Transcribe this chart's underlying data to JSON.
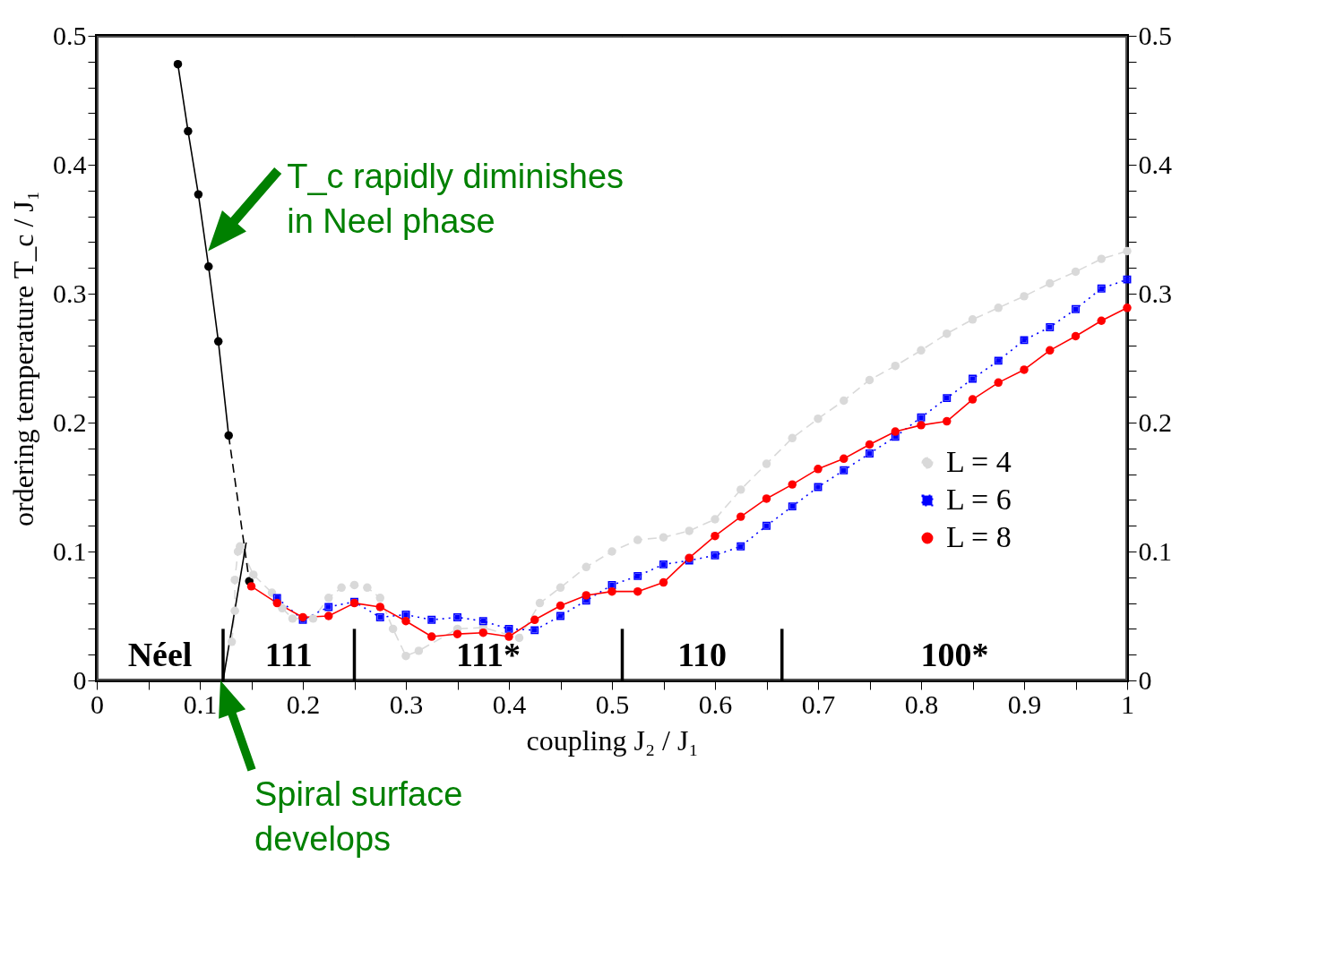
{
  "chart_data": {
    "type": "line",
    "xlabel": "coupling  J₂ / J₁",
    "ylabel": "ordering temperature  T_c / J₁",
    "xlim": [
      0,
      1
    ],
    "ylim": [
      0,
      0.5
    ],
    "y2lim": [
      0,
      0.5
    ],
    "xticks": [
      0,
      {
        "value": 0.05,
        "label": null
      },
      0.1,
      {
        "value": 0.15,
        "label": null
      },
      0.2,
      {
        "value": 0.25,
        "label": null
      },
      0.3,
      {
        "value": 0.35,
        "label": null
      },
      0.4,
      {
        "value": 0.45,
        "label": null
      },
      0.5,
      {
        "value": 0.55,
        "label": null
      },
      0.6,
      {
        "value": 0.65,
        "label": null
      },
      0.7,
      {
        "value": 0.75,
        "label": null
      },
      0.8,
      {
        "value": 0.85,
        "label": null
      },
      0.9,
      {
        "value": 0.95,
        "label": null
      },
      1
    ],
    "yticks": [
      0,
      {
        "value": 0.02,
        "label": null
      },
      {
        "value": 0.04,
        "label": null
      },
      {
        "value": 0.06,
        "label": null
      },
      {
        "value": 0.08,
        "label": null
      },
      0.1,
      {
        "value": 0.12,
        "label": null
      },
      {
        "value": 0.14,
        "label": null
      },
      {
        "value": 0.16,
        "label": null
      },
      {
        "value": 0.18,
        "label": null
      },
      0.2,
      {
        "value": 0.22,
        "label": null
      },
      {
        "value": 0.24,
        "label": null
      },
      {
        "value": 0.26,
        "label": null
      },
      {
        "value": 0.28,
        "label": null
      },
      0.3,
      {
        "value": 0.32,
        "label": null
      },
      {
        "value": 0.34,
        "label": null
      },
      {
        "value": 0.36,
        "label": null
      },
      {
        "value": 0.38,
        "label": null
      },
      0.4,
      {
        "value": 0.42,
        "label": null
      },
      {
        "value": 0.44,
        "label": null
      },
      {
        "value": 0.46,
        "label": null
      },
      {
        "value": 0.48,
        "label": null
      },
      0.5
    ],
    "y2ticks": [
      0,
      {
        "value": 0.02,
        "label": null
      },
      {
        "value": 0.04,
        "label": null
      },
      {
        "value": 0.06,
        "label": null
      },
      {
        "value": 0.08,
        "label": null
      },
      0.1,
      {
        "value": 0.12,
        "label": null
      },
      {
        "value": 0.14,
        "label": null
      },
      {
        "value": 0.16,
        "label": null
      },
      {
        "value": 0.18,
        "label": null
      },
      0.2,
      {
        "value": 0.22,
        "label": null
      },
      {
        "value": 0.24,
        "label": null
      },
      {
        "value": 0.26,
        "label": null
      },
      {
        "value": 0.28,
        "label": null
      },
      0.3,
      {
        "value": 0.32,
        "label": null
      },
      {
        "value": 0.34,
        "label": null
      },
      {
        "value": 0.36,
        "label": null
      },
      {
        "value": 0.38,
        "label": null
      },
      0.4,
      {
        "value": 0.42,
        "label": null
      },
      {
        "value": 0.44,
        "label": null
      },
      {
        "value": 0.46,
        "label": null
      },
      {
        "value": 0.48,
        "label": null
      },
      0.5
    ],
    "grid": false,
    "legend": "bottom right",
    "series": [
      {
        "name": "L =  4",
        "color": "#d9d9d9",
        "line_style": "dashed",
        "marker": "circle",
        "x": [
          0.131,
          0.134,
          0.134,
          0.137,
          0.139,
          0.152,
          0.17,
          0.18,
          0.19,
          0.21,
          0.225,
          0.2375,
          0.25,
          0.2625,
          0.275,
          0.2875,
          0.3,
          0.3125,
          0.35,
          0.375,
          0.41,
          0.43,
          0.45,
          0.475,
          0.5,
          0.525,
          0.55,
          0.575,
          0.6,
          0.625,
          0.65,
          0.675,
          0.7,
          0.725,
          0.75,
          0.775,
          0.8,
          0.825,
          0.85,
          0.875,
          0.9,
          0.925,
          0.95,
          0.975,
          1.0
        ],
        "values": [
          0.03,
          0.054,
          0.078,
          0.1,
          0.104,
          0.082,
          0.068,
          0.056,
          0.048,
          0.048,
          0.064,
          0.072,
          0.074,
          0.072,
          0.064,
          0.04,
          0.019,
          0.023,
          0.04,
          0.041,
          0.033,
          0.06,
          0.072,
          0.088,
          0.1,
          0.109,
          0.111,
          0.116,
          0.125,
          0.148,
          0.168,
          0.188,
          0.203,
          0.217,
          0.233,
          0.244,
          0.256,
          0.269,
          0.28,
          0.289,
          0.298,
          0.308,
          0.317,
          0.327,
          0.333
        ]
      },
      {
        "name": "L =  6",
        "color": "#0000ff",
        "line_style": "dotted",
        "marker": "square",
        "x": [
          0.175,
          0.2,
          0.225,
          0.25,
          0.275,
          0.3,
          0.325,
          0.35,
          0.375,
          0.4,
          0.425,
          0.45,
          0.475,
          0.5,
          0.525,
          0.55,
          0.575,
          0.6,
          0.625,
          0.65,
          0.675,
          0.7,
          0.725,
          0.75,
          0.775,
          0.8,
          0.825,
          0.85,
          0.875,
          0.9,
          0.925,
          0.95,
          0.975,
          1.0
        ],
        "values": [
          0.064,
          0.047,
          0.057,
          0.061,
          0.049,
          0.051,
          0.047,
          0.049,
          0.046,
          0.04,
          0.039,
          0.05,
          0.062,
          0.074,
          0.081,
          0.09,
          0.093,
          0.097,
          0.104,
          0.12,
          0.135,
          0.15,
          0.163,
          0.176,
          0.189,
          0.204,
          0.219,
          0.234,
          0.248,
          0.264,
          0.274,
          0.288,
          0.304,
          0.311
        ]
      },
      {
        "name": "L =  8",
        "color": "#ff0000",
        "line_style": "solid",
        "marker": "circle",
        "x": [
          0.15,
          0.175,
          0.2,
          0.225,
          0.25,
          0.275,
          0.3,
          0.325,
          0.35,
          0.375,
          0.4,
          0.425,
          0.45,
          0.475,
          0.5,
          0.525,
          0.55,
          0.575,
          0.6,
          0.625,
          0.65,
          0.675,
          0.7,
          0.725,
          0.75,
          0.775,
          0.8,
          0.825,
          0.85,
          0.875,
          0.9,
          0.925,
          0.95,
          0.975,
          1.0
        ],
        "values": [
          0.073,
          0.06,
          0.049,
          0.05,
          0.06,
          0.057,
          0.046,
          0.034,
          0.036,
          0.037,
          0.034,
          0.047,
          0.058,
          0.066,
          0.069,
          0.069,
          0.076,
          0.095,
          0.112,
          0.127,
          0.141,
          0.152,
          0.164,
          0.172,
          0.183,
          0.193,
          0.198,
          0.201,
          0.218,
          0.231,
          0.241,
          0.256,
          0.267,
          0.279,
          0.289
        ]
      },
      {
        "color": "#000000",
        "line_style": "solid",
        "marker": "circle",
        "x": [
          0.0787,
          0.0886,
          0.0986,
          0.1085,
          0.118,
          0.128
        ],
        "values": [
          0.478,
          0.426,
          0.377,
          0.321,
          0.263,
          0.19
        ]
      },
      {
        "color": "#000000",
        "line_style": "dashed",
        "marker": "none",
        "x": [
          0.128,
          0.148
        ],
        "values": [
          0.19,
          0.077
        ]
      },
      {
        "type": "scatter",
        "color": "#000000",
        "marker": "circle",
        "x": [
          0.148
        ],
        "values": [
          0.077
        ]
      },
      {
        "color": "#000000",
        "line_style": "solid",
        "marker": "none",
        "x": [
          0.1226,
          0.145
        ],
        "values": [
          0,
          0.107
        ]
      },
      {
        "color": "#000000",
        "line_style": "solid",
        "marker": "none",
        "x": [
          0.1226,
          0.1226
        ],
        "values": [
          0,
          0.04
        ]
      },
      {
        "color": "#000000",
        "line_style": "solid",
        "marker": "none",
        "x": [
          0.25,
          0.25
        ],
        "values": [
          0,
          0.04
        ]
      },
      {
        "color": "#000000",
        "line_style": "solid",
        "marker": "none",
        "x": [
          0.51,
          0.51
        ],
        "values": [
          0,
          0.04
        ]
      },
      {
        "color": "#000000",
        "line_style": "solid",
        "marker": "none",
        "x": [
          0.665,
          0.665
        ],
        "values": [
          0,
          0.04
        ]
      }
    ],
    "bands": [
      {
        "axis": "x",
        "from": 0,
        "to": 0.1226,
        "label": "Néel",
        "color": "#ffffff"
      },
      {
        "axis": "x",
        "from": 0.1226,
        "to": 0.25,
        "label": "111",
        "color": "#ffffff"
      },
      {
        "axis": "x",
        "from": 0.25,
        "to": 0.51,
        "label": "111*",
        "color": "#ffffff"
      },
      {
        "axis": "x",
        "from": 0.51,
        "to": 0.665,
        "label": "110",
        "color": "#ffffff"
      },
      {
        "axis": "x",
        "from": 0.665,
        "to": 1,
        "label": "100*",
        "color": "#ffffff"
      }
    ],
    "annotations": [
      {
        "text": "T_c rapidly diminishes\nin Neel phase",
        "x": 0.108,
        "y": 0.333
      },
      {
        "text": "Spiral surface\ndevelops",
        "x": 0.12,
        "y": 0
      }
    ]
  }
}
